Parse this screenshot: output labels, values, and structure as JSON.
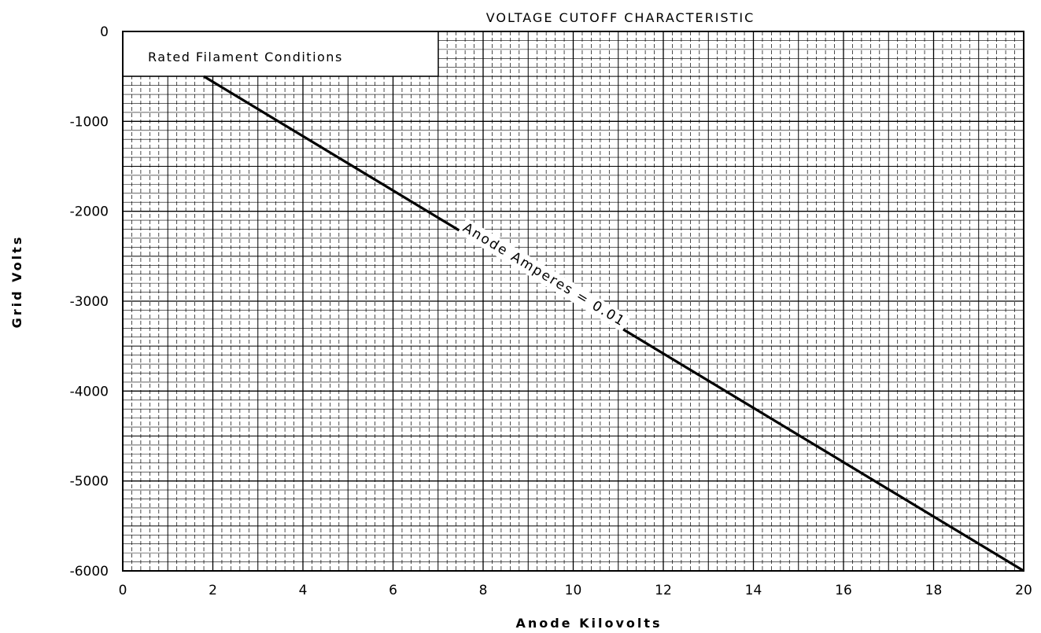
{
  "chart_data": {
    "type": "line",
    "title": "VOLTAGE CUTOFF CHARACTERISTIC",
    "xlabel": "Anode Kilovolts",
    "ylabel": "Grid Volts",
    "xlim": [
      0,
      20
    ],
    "ylim": [
      -6000,
      0
    ],
    "xticks": [
      0,
      2,
      4,
      6,
      8,
      10,
      12,
      14,
      16,
      18,
      20
    ],
    "yticks": [
      0,
      -1000,
      -2000,
      -3000,
      -4000,
      -5000,
      -6000
    ],
    "x_tick_labels": [
      "0",
      "2",
      "4",
      "6",
      "8",
      "10",
      "12",
      "14",
      "16",
      "18",
      "20"
    ],
    "y_tick_labels": [
      "0",
      "-1000",
      "-2000",
      "-3000",
      "-4000",
      "-5000",
      "-6000"
    ],
    "grid": true,
    "annotation": "Rated Filament Conditions",
    "series": [
      {
        "name": "Anode Amperes = 0.01",
        "x": [
          1.8,
          20
        ],
        "y": [
          -500,
          -6000
        ]
      }
    ]
  }
}
